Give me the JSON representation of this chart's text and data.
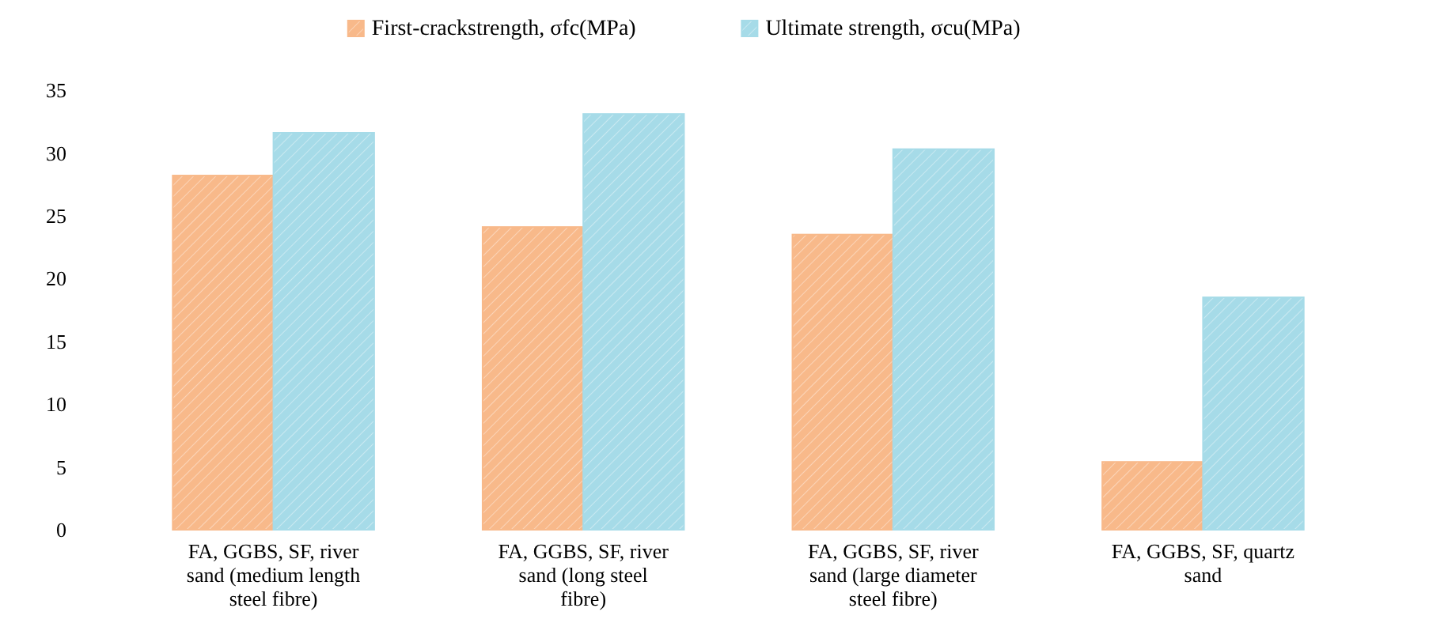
{
  "chart_data": {
    "type": "bar",
    "categories": [
      "FA, GGBS, SF, river sand (medium length steel fibre)",
      "FA, GGBS, SF, river sand (long steel fibre)",
      "FA, GGBS, SF, river sand (large diameter steel fibre)",
      "FA, GGBS, SF, quartz sand"
    ],
    "series": [
      {
        "name": "First-crackstrength, σfc(MPa)",
        "color": "#f8b98a",
        "values": [
          28.2,
          24.1,
          23.5,
          5.4
        ]
      },
      {
        "name": "Ultimate strength, σcu(MPa)",
        "color": "#a6dbe8",
        "values": [
          31.6,
          33.1,
          30.3,
          18.5
        ]
      }
    ],
    "ylim": [
      0,
      35
    ],
    "yticks": [
      0,
      5,
      10,
      15,
      20,
      25,
      30,
      35
    ],
    "grid": false,
    "legend": "top"
  }
}
